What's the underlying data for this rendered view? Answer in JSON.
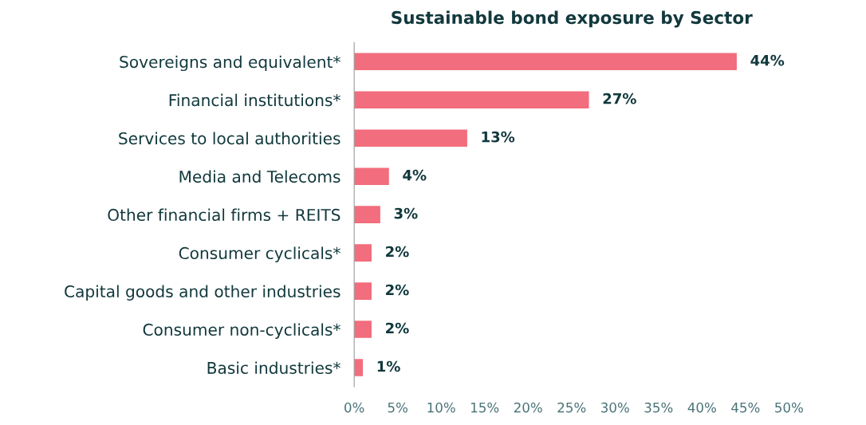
{
  "chart_data": {
    "type": "bar",
    "orientation": "horizontal",
    "title": "Sustainable bond exposure by Sector",
    "categories": [
      "Sovereigns and equivalent*",
      "Financial institutions*",
      "Services to local authorities",
      "Media and Telecoms",
      "Other financial firms + REITS",
      "Consumer cyclicals*",
      "Capital goods and other industries",
      "Consumer non-cyclicals*",
      "Basic industries*"
    ],
    "values": [
      44,
      27,
      13,
      4,
      3,
      2,
      2,
      2,
      1
    ],
    "value_labels": [
      "44%",
      "27%",
      "13%",
      "4%",
      "3%",
      "2%",
      "2%",
      "2%",
      "1%"
    ],
    "color": "#f26d7d",
    "xlim": [
      0,
      50
    ],
    "xticks": [
      {
        "value": 0,
        "label": "0%"
      },
      {
        "value": 5,
        "label": "5%"
      },
      {
        "value": 10,
        "label": "10%"
      },
      {
        "value": 15,
        "label": "15%"
      },
      {
        "value": 20,
        "label": "20%"
      },
      {
        "value": 25,
        "label": "25%"
      },
      {
        "value": 30,
        "label": "30%"
      },
      {
        "value": 35,
        "label": "35%"
      },
      {
        "value": 40,
        "label": "40%"
      },
      {
        "value": 45,
        "label": "45%"
      },
      {
        "value": 50,
        "label": "50%"
      }
    ],
    "grid": false,
    "legend": false
  }
}
